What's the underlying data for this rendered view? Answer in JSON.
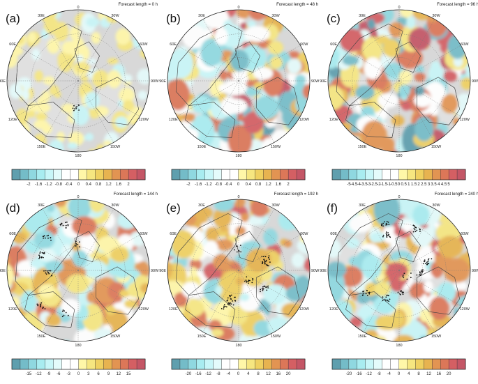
{
  "figure": {
    "panels": [
      {
        "label": "(a)",
        "title": "Forecast length = 0 h",
        "bar": 0,
        "amp": 0.35,
        "dots": 1
      },
      {
        "label": "(b)",
        "title": "Forecast length = 48 h",
        "bar": 0,
        "amp": 1.0,
        "dots": 0
      },
      {
        "label": "(c)",
        "title": "Forecast length = 96 h",
        "bar": 1,
        "amp": 1.0,
        "dots": 0
      },
      {
        "label": "(d)",
        "title": "Forecast length = 144 h",
        "bar": 2,
        "amp": 0.8,
        "dots": 7
      },
      {
        "label": "(e)",
        "title": "Forecast length = 192 h",
        "bar": 3,
        "amp": 0.85,
        "dots": 8
      },
      {
        "label": "(f)",
        "title": "Forecast length = 240 h",
        "bar": 3,
        "amp": 0.9,
        "dots": 9
      }
    ],
    "lon_labels": {
      "top": "0",
      "bottom": "180",
      "left": "90E",
      "right": "90W",
      "upper_left": [
        "30E",
        "60E"
      ],
      "upper_right": [
        "30W",
        "60W"
      ],
      "lower_left": [
        "120E",
        "150E"
      ],
      "lower_right": [
        "120W",
        "150W"
      ]
    },
    "colorbars": [
      [
        "-2",
        "-1.6",
        "-1.2",
        "-0.8",
        "-0.4",
        "0",
        "0.4",
        "0.8",
        "1.2",
        "1.6",
        "2"
      ],
      [
        "-5",
        "-4.5",
        "-4",
        "-3.5",
        "-3",
        "-2.5",
        "-2",
        "-1.5",
        "-1",
        "-0.5",
        "0",
        "0.5",
        "1",
        "1.5",
        "2",
        "2.5",
        "3",
        "3.5",
        "4",
        "4.5",
        "5"
      ],
      [
        "-15",
        "-12",
        "-9",
        "-6",
        "-3",
        "0",
        "3",
        "6",
        "9",
        "12",
        "15"
      ],
      [
        "-20",
        "-16",
        "-12",
        "-8",
        "-4",
        "0",
        "4",
        "8",
        "12",
        "16",
        "20"
      ]
    ],
    "colors": [
      "#5f9fae",
      "#74bcc8",
      "#8fd8e0",
      "#a8ecf0",
      "#c8f6f8",
      "#e4fbfb",
      "#ffffff",
      "#ffffff",
      "#fff7a8",
      "#f6e680",
      "#efd060",
      "#e7b350",
      "#e29452",
      "#dc7758",
      "#d45f63",
      "#c45666"
    ],
    "land_color": "#e0e0e0",
    "ocean_color": "#d8d8d8"
  },
  "chart_data": [
    {
      "type": "heatmap",
      "title": "Forecast length = 0 h",
      "panel": "(a)",
      "levels": [
        -2,
        -1.6,
        -1.2,
        -0.8,
        -0.4,
        0,
        0.4,
        0.8,
        1.2,
        1.6,
        2
      ],
      "vmin": -2,
      "vmax": 2
    },
    {
      "type": "heatmap",
      "title": "Forecast length = 48 h",
      "panel": "(b)",
      "levels": [
        -2,
        -1.6,
        -1.2,
        -0.8,
        -0.4,
        0,
        0.4,
        0.8,
        1.2,
        1.6,
        2
      ],
      "vmin": -2,
      "vmax": 2
    },
    {
      "type": "heatmap",
      "title": "Forecast length = 96 h",
      "panel": "(c)",
      "levels": [
        -5,
        -4.5,
        -4,
        -3.5,
        -3,
        -2.5,
        -2,
        -1.5,
        -1,
        -0.5,
        0,
        0.5,
        1,
        1.5,
        2,
        2.5,
        3,
        3.5,
        4,
        4.5,
        5
      ],
      "vmin": -5,
      "vmax": 5
    },
    {
      "type": "heatmap",
      "title": "Forecast length = 144 h",
      "panel": "(d)",
      "levels": [
        -15,
        -12,
        -9,
        -6,
        -3,
        0,
        3,
        6,
        9,
        12,
        15
      ],
      "vmin": -15,
      "vmax": 15
    },
    {
      "type": "heatmap",
      "title": "Forecast length = 192 h",
      "panel": "(e)",
      "levels": [
        -20,
        -16,
        -12,
        -8,
        -4,
        0,
        4,
        8,
        12,
        16,
        20
      ],
      "vmin": -20,
      "vmax": 20
    },
    {
      "type": "heatmap",
      "title": "Forecast length = 240 h",
      "panel": "(f)",
      "levels": [
        -20,
        -16,
        -12,
        -8,
        -4,
        0,
        4,
        8,
        12,
        16,
        20
      ],
      "vmin": -20,
      "vmax": 20
    }
  ]
}
